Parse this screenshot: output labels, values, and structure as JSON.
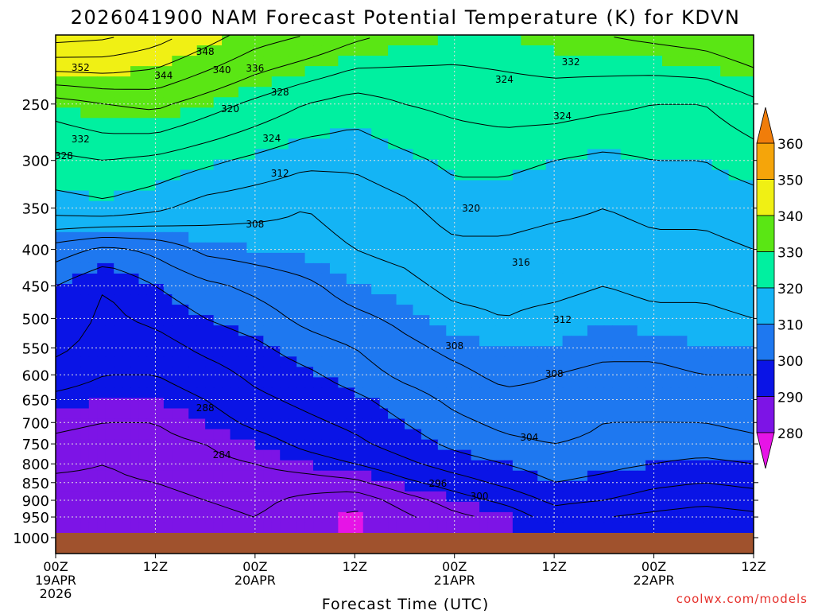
{
  "title": "2026041900 NAM Forecast Potential Temperature (K) for KDVN",
  "credit": "coolwx.com/models",
  "chart_data": {
    "type": "heatmap",
    "title": "2026041900 NAM Forecast Potential Temperature (K) for KDVN",
    "xlabel": "Forecast Time (UTC)",
    "ylabel": "",
    "x_ticks": [
      {
        "label": "00Z",
        "sub": [
          "19APR",
          "2026"
        ]
      },
      {
        "label": "12Z",
        "sub": []
      },
      {
        "label": "00Z",
        "sub": [
          "20APR"
        ]
      },
      {
        "label": "12Z",
        "sub": []
      },
      {
        "label": "00Z",
        "sub": [
          "21APR"
        ]
      },
      {
        "label": "12Z",
        "sub": []
      },
      {
        "label": "00Z",
        "sub": [
          "22APR"
        ]
      },
      {
        "label": "12Z",
        "sub": []
      }
    ],
    "x_range_hours": [
      0,
      84
    ],
    "y_ticks": [
      250,
      300,
      350,
      400,
      450,
      500,
      550,
      600,
      650,
      700,
      750,
      800,
      850,
      900,
      950,
      1000
    ],
    "y_range": [
      200,
      1000
    ],
    "y_scale": "log",
    "colorbar": {
      "labels": [
        "360",
        "350",
        "340",
        "330",
        "320",
        "310",
        "300",
        "290",
        "280"
      ],
      "bins": [
        {
          "lo": 280,
          "hi": 290,
          "color": "#7d14e6"
        },
        {
          "lo": 290,
          "hi": 300,
          "color": "#0a14e6"
        },
        {
          "lo": 300,
          "hi": 310,
          "color": "#1e78f0"
        },
        {
          "lo": 310,
          "hi": 320,
          "color": "#14b4f5"
        },
        {
          "lo": 320,
          "hi": 330,
          "color": "#00f0a0"
        },
        {
          "lo": 330,
          "hi": 340,
          "color": "#5ae614"
        },
        {
          "lo": 340,
          "hi": 350,
          "color": "#f0f014"
        },
        {
          "lo": 350,
          "hi": 360,
          "color": "#f5a50a"
        }
      ],
      "under_color": "#e614e6",
      "over_color": "#f07d0a"
    },
    "ground_color": "#a0522d",
    "contour_labels": [
      "352",
      "348",
      "344",
      "340",
      "336",
      "332",
      "328",
      "324",
      "320",
      "316",
      "312",
      "308",
      "304",
      "300",
      "296",
      "288",
      "284"
    ],
    "series": [
      {
        "hours": [
          0,
          6,
          12,
          18,
          24,
          30,
          36,
          42,
          48,
          54,
          60,
          66,
          72,
          78,
          84
        ],
        "values": [
          [
            350,
            349,
            346,
            342,
            338,
            336,
            333,
            331,
            330,
            330,
            331,
            332,
            333,
            334,
            336
          ],
          [
            330,
            332,
            333,
            330,
            327,
            324,
            322,
            324,
            325,
            326,
            326,
            325,
            324,
            324,
            327
          ],
          [
            323,
            324,
            323,
            321,
            319,
            317,
            317,
            319,
            321,
            321,
            320,
            319,
            320,
            320,
            322
          ],
          [
            318,
            319,
            317,
            314,
            313,
            312,
            313,
            315,
            318,
            318,
            317,
            316,
            317,
            317,
            318
          ],
          [
            306,
            303,
            305,
            309,
            310,
            311,
            312,
            313,
            315,
            315,
            314,
            314,
            315,
            315,
            316
          ],
          [
            300,
            296,
            300,
            303,
            305,
            307,
            310,
            311,
            313,
            313,
            313,
            312,
            313,
            313,
            314
          ],
          [
            299,
            295,
            297,
            300,
            302,
            305,
            307,
            309,
            311,
            312,
            311,
            310,
            311,
            311,
            312
          ],
          [
            297,
            294,
            294,
            297,
            299,
            302,
            304,
            307,
            309,
            310,
            310,
            309,
            309,
            310,
            310
          ],
          [
            294,
            292,
            292,
            294,
            297,
            299,
            302,
            305,
            307,
            309,
            308,
            307,
            307,
            308,
            308
          ],
          [
            291,
            290,
            290,
            292,
            295,
            297,
            299,
            302,
            305,
            307,
            307,
            305,
            305,
            306,
            306
          ],
          [
            289,
            288,
            288,
            290,
            293,
            295,
            297,
            300,
            303,
            305,
            306,
            304,
            304,
            304,
            305
          ],
          [
            287,
            286,
            287,
            288,
            290,
            293,
            295,
            298,
            301,
            303,
            304,
            303,
            302,
            302,
            303
          ],
          [
            285,
            284,
            286,
            287,
            288,
            290,
            292,
            295,
            298,
            300,
            302,
            301,
            300,
            299,
            300
          ],
          [
            283,
            283,
            284,
            285,
            286,
            286,
            287,
            291,
            294,
            297,
            300,
            299,
            297,
            296,
            297
          ],
          [
            282,
            282,
            283,
            284,
            285,
            283,
            281,
            286,
            290,
            293,
            297,
            296,
            294,
            293,
            294
          ],
          [
            281,
            281,
            282,
            283,
            284,
            282,
            279,
            283,
            287,
            289,
            294,
            292,
            291,
            290,
            291
          ]
        ]
      }
    ],
    "levels_hpa": [
      200,
      250,
      300,
      350,
      400,
      450,
      500,
      550,
      600,
      650,
      700,
      750,
      800,
      850,
      900,
      950
    ],
    "grid": true
  }
}
